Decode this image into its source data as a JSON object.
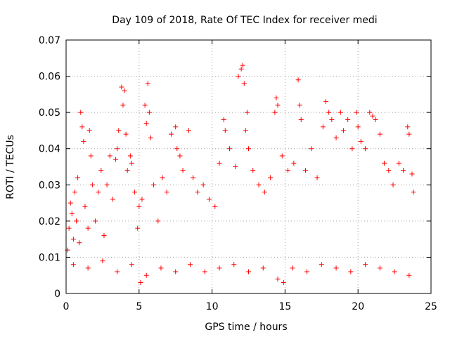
{
  "chart_data": {
    "type": "scatter",
    "title": "Day 109 of 2018, Rate Of TEC Index for receiver medi",
    "xlabel": "GPS time / hours",
    "ylabel": "ROTI / TECUs",
    "xlim": [
      0,
      25
    ],
    "ylim": [
      0,
      0.07
    ],
    "x_ticks": [
      0,
      5,
      10,
      15,
      20,
      25
    ],
    "y_ticks": [
      0,
      0.01,
      0.02,
      0.03,
      0.04,
      0.05,
      0.06,
      0.07
    ],
    "x_tick_labels": [
      "0",
      "5",
      "10",
      "15",
      "20",
      "25"
    ],
    "y_tick_labels": [
      "0",
      "0.01",
      "0.02",
      "0.03",
      "0.04",
      "0.05",
      "0.06",
      "0.07"
    ],
    "grid": true,
    "legend": "none",
    "marker": "plus",
    "color": "#ff0000",
    "series": [
      {
        "values": [
          [
            0.1,
            0.012
          ],
          [
            0.2,
            0.018
          ],
          [
            0.3,
            0.025
          ],
          [
            0.4,
            0.022
          ],
          [
            0.5,
            0.015
          ],
          [
            0.6,
            0.028
          ],
          [
            0.7,
            0.02
          ],
          [
            0.8,
            0.032
          ],
          [
            0.9,
            0.014
          ],
          [
            1.0,
            0.05
          ],
          [
            1.1,
            0.046
          ],
          [
            1.2,
            0.042
          ],
          [
            1.3,
            0.024
          ],
          [
            1.5,
            0.018
          ],
          [
            1.6,
            0.045
          ],
          [
            1.7,
            0.038
          ],
          [
            1.8,
            0.03
          ],
          [
            2.0,
            0.02
          ],
          [
            2.2,
            0.028
          ],
          [
            2.4,
            0.034
          ],
          [
            2.6,
            0.016
          ],
          [
            2.8,
            0.03
          ],
          [
            3.0,
            0.038
          ],
          [
            3.2,
            0.026
          ],
          [
            3.4,
            0.037
          ],
          [
            3.5,
            0.04
          ],
          [
            3.6,
            0.045
          ],
          [
            3.8,
            0.057
          ],
          [
            3.9,
            0.052
          ],
          [
            4.0,
            0.056
          ],
          [
            4.1,
            0.044
          ],
          [
            4.2,
            0.034
          ],
          [
            4.4,
            0.038
          ],
          [
            4.5,
            0.036
          ],
          [
            4.7,
            0.028
          ],
          [
            4.9,
            0.018
          ],
          [
            5.0,
            0.024
          ],
          [
            5.2,
            0.026
          ],
          [
            5.4,
            0.052
          ],
          [
            5.5,
            0.047
          ],
          [
            5.6,
            0.058
          ],
          [
            5.7,
            0.05
          ],
          [
            5.8,
            0.043
          ],
          [
            6.0,
            0.03
          ],
          [
            6.3,
            0.02
          ],
          [
            6.6,
            0.032
          ],
          [
            6.9,
            0.028
          ],
          [
            7.2,
            0.044
          ],
          [
            7.5,
            0.046
          ],
          [
            7.6,
            0.04
          ],
          [
            7.8,
            0.038
          ],
          [
            8.0,
            0.034
          ],
          [
            8.4,
            0.045
          ],
          [
            8.7,
            0.032
          ],
          [
            9.0,
            0.028
          ],
          [
            9.4,
            0.03
          ],
          [
            9.8,
            0.026
          ],
          [
            10.2,
            0.024
          ],
          [
            10.5,
            0.036
          ],
          [
            10.8,
            0.048
          ],
          [
            10.9,
            0.045
          ],
          [
            11.2,
            0.04
          ],
          [
            11.6,
            0.035
          ],
          [
            11.8,
            0.06
          ],
          [
            12.0,
            0.062
          ],
          [
            12.1,
            0.063
          ],
          [
            12.2,
            0.058
          ],
          [
            12.3,
            0.045
          ],
          [
            12.4,
            0.05
          ],
          [
            12.5,
            0.04
          ],
          [
            12.8,
            0.034
          ],
          [
            13.2,
            0.03
          ],
          [
            13.6,
            0.028
          ],
          [
            14.0,
            0.032
          ],
          [
            14.3,
            0.05
          ],
          [
            14.4,
            0.054
          ],
          [
            14.5,
            0.052
          ],
          [
            14.8,
            0.038
          ],
          [
            15.2,
            0.034
          ],
          [
            15.6,
            0.036
          ],
          [
            15.9,
            0.059
          ],
          [
            16.0,
            0.052
          ],
          [
            16.1,
            0.048
          ],
          [
            16.4,
            0.034
          ],
          [
            16.8,
            0.04
          ],
          [
            17.2,
            0.032
          ],
          [
            17.6,
            0.046
          ],
          [
            17.8,
            0.053
          ],
          [
            18.0,
            0.05
          ],
          [
            18.2,
            0.048
          ],
          [
            18.5,
            0.043
          ],
          [
            18.8,
            0.05
          ],
          [
            19.0,
            0.045
          ],
          [
            19.3,
            0.048
          ],
          [
            19.6,
            0.04
          ],
          [
            19.9,
            0.05
          ],
          [
            20.0,
            0.046
          ],
          [
            20.2,
            0.042
          ],
          [
            20.5,
            0.04
          ],
          [
            20.8,
            0.05
          ],
          [
            21.0,
            0.049
          ],
          [
            21.2,
            0.048
          ],
          [
            21.5,
            0.044
          ],
          [
            21.8,
            0.036
          ],
          [
            22.1,
            0.034
          ],
          [
            22.4,
            0.03
          ],
          [
            22.8,
            0.036
          ],
          [
            23.1,
            0.034
          ],
          [
            23.4,
            0.046
          ],
          [
            23.5,
            0.044
          ],
          [
            23.7,
            0.033
          ],
          [
            23.8,
            0.028
          ],
          [
            0.5,
            0.008
          ],
          [
            1.5,
            0.007
          ],
          [
            2.5,
            0.009
          ],
          [
            3.5,
            0.006
          ],
          [
            4.5,
            0.008
          ],
          [
            5.1,
            0.003
          ],
          [
            5.5,
            0.005
          ],
          [
            6.5,
            0.007
          ],
          [
            7.5,
            0.006
          ],
          [
            8.5,
            0.008
          ],
          [
            9.5,
            0.006
          ],
          [
            10.5,
            0.007
          ],
          [
            11.5,
            0.008
          ],
          [
            12.5,
            0.006
          ],
          [
            13.5,
            0.007
          ],
          [
            14.5,
            0.004
          ],
          [
            14.9,
            0.003
          ],
          [
            15.5,
            0.007
          ],
          [
            16.5,
            0.006
          ],
          [
            17.5,
            0.008
          ],
          [
            18.5,
            0.007
          ],
          [
            19.5,
            0.006
          ],
          [
            20.5,
            0.008
          ],
          [
            21.5,
            0.007
          ],
          [
            22.5,
            0.006
          ],
          [
            23.5,
            0.005
          ]
        ]
      }
    ]
  }
}
